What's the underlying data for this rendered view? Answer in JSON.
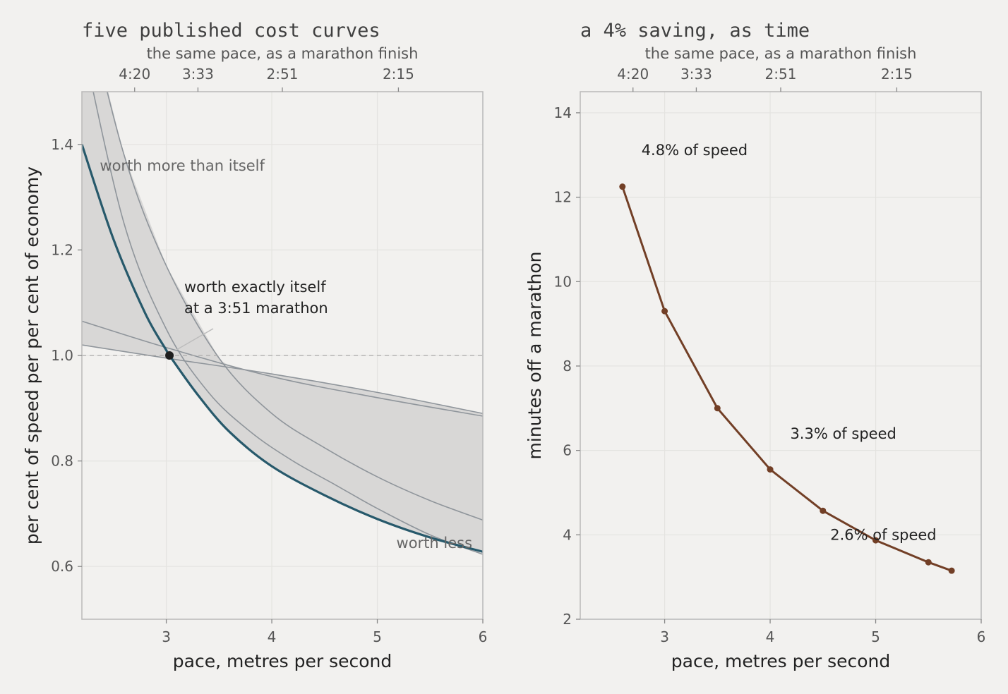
{
  "chart_data": [
    {
      "type": "line",
      "title": "five published cost curves",
      "secondary_axis_label": "the same pace, as a marathon finish",
      "secondary_ticks": [
        {
          "x": 2.7,
          "label": "4:20"
        },
        {
          "x": 3.3,
          "label": "3:33"
        },
        {
          "x": 4.1,
          "label": "2:51"
        },
        {
          "x": 5.2,
          "label": "2:15"
        }
      ],
      "xlabel": "pace, metres per second",
      "ylabel": "per cent of speed per per cent of economy",
      "xlim": [
        2.2,
        6.0
      ],
      "ylim": [
        0.5,
        1.5
      ],
      "xticks": [
        3,
        4,
        5,
        6
      ],
      "yticks": [
        0.6,
        0.8,
        1.0,
        1.2,
        1.4
      ],
      "reference_line": 1.0,
      "series": [
        {
          "role": "highlight",
          "color": "#27596b",
          "x": [
            2.2,
            2.5,
            2.8,
            3.0,
            3.03,
            3.3,
            3.6,
            4.0,
            4.5,
            5.0,
            5.5,
            6.0
          ],
          "y": [
            1.4,
            1.22,
            1.08,
            1.01,
            1.0,
            0.925,
            0.855,
            0.79,
            0.735,
            0.69,
            0.655,
            0.628
          ]
        },
        {
          "role": "other",
          "color": "#8f959b",
          "x": [
            2.2,
            2.6,
            3.0,
            3.4,
            3.8,
            4.2,
            4.6,
            5.0,
            5.5,
            6.0
          ],
          "y": [
            1.6,
            1.25,
            1.05,
            0.93,
            0.855,
            0.8,
            0.755,
            0.71,
            0.66,
            0.623
          ]
        },
        {
          "role": "other",
          "color": "#8f959b",
          "x": [
            2.2,
            2.6,
            3.0,
            3.5,
            4.0,
            4.5,
            5.0,
            5.5,
            6.0
          ],
          "y": [
            1.7,
            1.38,
            1.17,
            0.995,
            0.89,
            0.825,
            0.77,
            0.725,
            0.688
          ]
        },
        {
          "role": "other",
          "color": "#8f959b",
          "x": [
            2.2,
            3.0,
            4.0,
            5.0,
            6.0
          ],
          "y": [
            1.065,
            1.015,
            0.96,
            0.92,
            0.885
          ]
        },
        {
          "role": "other",
          "color": "#8f959b",
          "x": [
            2.2,
            3.0,
            4.0,
            5.0,
            6.0
          ],
          "y": [
            1.02,
            0.995,
            0.965,
            0.93,
            0.89
          ]
        }
      ],
      "highlight_point": {
        "x": 3.03,
        "y": 1.0
      },
      "annotations": [
        {
          "text": "worth more than itself",
          "x": 2.37,
          "y": 1.35
        },
        {
          "text": "worth exactly itself",
          "x": 3.17,
          "y": 1.12
        },
        {
          "text": "at a 3:51 marathon",
          "x": 3.17,
          "y": 1.08
        },
        {
          "text": "worth less",
          "x": 5.9,
          "y": 0.635
        }
      ]
    },
    {
      "type": "line",
      "title": "a 4% saving, as time",
      "secondary_axis_label": "the same pace, as a marathon finish",
      "secondary_ticks": [
        {
          "x": 2.7,
          "label": "4:20"
        },
        {
          "x": 3.3,
          "label": "3:33"
        },
        {
          "x": 4.1,
          "label": "2:51"
        },
        {
          "x": 5.2,
          "label": "2:15"
        }
      ],
      "xlabel": "pace, metres per second",
      "ylabel": "minutes off a marathon",
      "xlim": [
        2.2,
        6.0
      ],
      "ylim": [
        2,
        14.5
      ],
      "xticks": [
        3,
        4,
        5,
        6
      ],
      "yticks": [
        2,
        4,
        6,
        8,
        10,
        12,
        14
      ],
      "series": [
        {
          "color": "#723f26",
          "x": [
            2.6,
            3.0,
            3.5,
            4.0,
            4.5,
            5.0,
            5.5,
            5.72
          ],
          "y": [
            12.25,
            9.3,
            7.0,
            5.55,
            4.57,
            3.87,
            3.35,
            3.15
          ]
        }
      ],
      "annotations": [
        {
          "text": "4.8% of speed",
          "x": 2.78,
          "y": 13.0
        },
        {
          "text": "3.3% of speed",
          "x": 4.19,
          "y": 6.28
        },
        {
          "text": "2.6% of speed",
          "x": 4.57,
          "y": 3.88
        }
      ]
    }
  ]
}
